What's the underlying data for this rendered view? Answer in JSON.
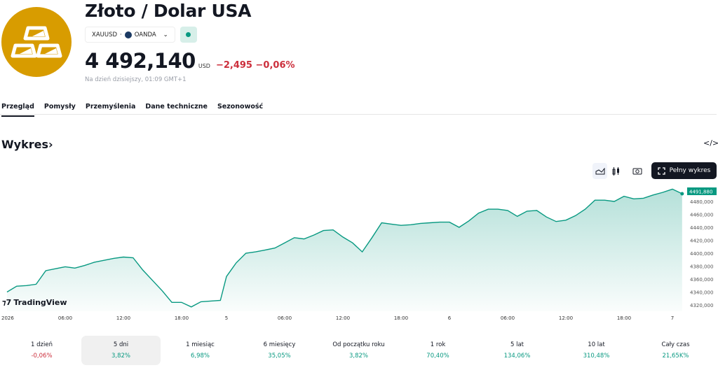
{
  "header": {
    "title": "Złoto / Dolar USA",
    "symbol": "XAUUSD",
    "exchange": "OANDA",
    "price": "4 492,140",
    "currency": "USD",
    "change": "−2,495",
    "change_pct": "−0,06%",
    "as_of": "Na dzień dzisiejszy, 01:09 GMT+1",
    "logo_color": "#D89C00"
  },
  "tabs": [
    {
      "label": "Przegląd",
      "active": true
    },
    {
      "label": "Pomysły"
    },
    {
      "label": "Przemyślenia"
    },
    {
      "label": "Dane techniczne"
    },
    {
      "label": "Sezonowość"
    }
  ],
  "chart_section": {
    "title": "Wykres",
    "chevron": "›",
    "embed_icon": "code-icon",
    "full_chart_label": "Pełny wykres",
    "branding": "TradingView"
  },
  "chart_data": {
    "type": "area",
    "color": "#089981",
    "last_value_label": "4491,880",
    "y_ticks": [
      "4480,000",
      "4460,000",
      "4440,000",
      "4420,000",
      "4400,000",
      "4380,000",
      "4360,000",
      "4340,000",
      "4320,000"
    ],
    "ylim": [
      4310,
      4505
    ],
    "x_ticks": [
      {
        "label": "2026",
        "time": "01-04 00:00"
      },
      {
        "label": "06:00",
        "time": "01-04 06:00"
      },
      {
        "label": "12:00",
        "time": "01-04 12:00"
      },
      {
        "label": "18:00",
        "time": "01-04 18:00"
      },
      {
        "label": "5",
        "time": "01-05 00:00"
      },
      {
        "label": "06:00",
        "time": "01-05 06:00"
      },
      {
        "label": "12:00",
        "time": "01-05 12:00"
      },
      {
        "label": "18:00",
        "time": "01-05 18:00"
      },
      {
        "label": "6",
        "time": "01-06 00:00"
      },
      {
        "label": "06:00",
        "time": "01-06 06:00"
      },
      {
        "label": "12:00",
        "time": "01-06 12:00"
      },
      {
        "label": "18:00",
        "time": "01-06 18:00"
      },
      {
        "label": "7",
        "time": "01-07 00:00"
      }
    ],
    "series": [
      {
        "points": [
          [
            "01-04 00:00",
            4340
          ],
          [
            "01-04 01:00",
            4349
          ],
          [
            "01-04 02:00",
            4350
          ],
          [
            "01-04 03:00",
            4352
          ],
          [
            "01-04 04:00",
            4373
          ],
          [
            "01-04 05:00",
            4376
          ],
          [
            "01-04 06:00",
            4379
          ],
          [
            "01-04 07:00",
            4377
          ],
          [
            "01-04 08:00",
            4381
          ],
          [
            "01-04 09:00",
            4386
          ],
          [
            "01-04 10:00",
            4389
          ],
          [
            "01-04 11:00",
            4392
          ],
          [
            "01-04 12:00",
            4394
          ],
          [
            "01-04 13:00",
            4393
          ],
          [
            "01-04 14:00",
            4374
          ],
          [
            "01-04 15:00",
            4358
          ],
          [
            "01-04 16:00",
            4342
          ],
          [
            "01-04 17:00",
            4324
          ],
          [
            "01-04 18:00",
            4324
          ],
          [
            "01-04 19:00",
            4317
          ],
          [
            "01-04 20:00",
            4325
          ],
          [
            "01-04 21:00",
            4326
          ],
          [
            "01-04 22:00",
            4327
          ],
          [
            "01-05 00:00",
            4364
          ],
          [
            "01-05 01:00",
            4385
          ],
          [
            "01-05 02:00",
            4400
          ],
          [
            "01-05 03:00",
            4402
          ],
          [
            "01-05 04:00",
            4405
          ],
          [
            "01-05 05:00",
            4408
          ],
          [
            "01-05 06:00",
            4416
          ],
          [
            "01-05 07:00",
            4424
          ],
          [
            "01-05 08:00",
            4422
          ],
          [
            "01-05 09:00",
            4428
          ],
          [
            "01-05 10:00",
            4435
          ],
          [
            "01-05 11:00",
            4436
          ],
          [
            "01-05 12:00",
            4425
          ],
          [
            "01-05 13:00",
            4416
          ],
          [
            "01-05 14:00",
            4402
          ],
          [
            "01-05 15:00",
            4424
          ],
          [
            "01-05 16:00",
            4447
          ],
          [
            "01-05 17:00",
            4445
          ],
          [
            "01-05 18:00",
            4443
          ],
          [
            "01-05 19:00",
            4444
          ],
          [
            "01-05 20:00",
            4446
          ],
          [
            "01-05 21:00",
            4447
          ],
          [
            "01-05 22:00",
            4448
          ],
          [
            "01-06 00:00",
            4448
          ],
          [
            "01-06 01:00",
            4440
          ],
          [
            "01-06 02:00",
            4450
          ],
          [
            "01-06 03:00",
            4462
          ],
          [
            "01-06 04:00",
            4468
          ],
          [
            "01-06 05:00",
            4468
          ],
          [
            "01-06 06:00",
            4466
          ],
          [
            "01-06 07:00",
            4457
          ],
          [
            "01-06 08:00",
            4465
          ],
          [
            "01-06 09:00",
            4466
          ],
          [
            "01-06 10:00",
            4456
          ],
          [
            "01-06 11:00",
            4449
          ],
          [
            "01-06 12:00",
            4451
          ],
          [
            "01-06 13:00",
            4458
          ],
          [
            "01-06 14:00",
            4468
          ],
          [
            "01-06 15:00",
            4482
          ],
          [
            "01-06 16:00",
            4482
          ],
          [
            "01-06 17:00",
            4480
          ],
          [
            "01-06 18:00",
            4488
          ],
          [
            "01-06 19:00",
            4484
          ],
          [
            "01-06 20:00",
            4485
          ],
          [
            "01-06 21:00",
            4490
          ],
          [
            "01-06 22:00",
            4494
          ],
          [
            "01-07 00:00",
            4499
          ],
          [
            "01-07 01:00",
            4491.88
          ]
        ]
      }
    ]
  },
  "periods": [
    {
      "label": "1 dzień",
      "value": "-0,06%",
      "dir": "neg"
    },
    {
      "label": "5 dni",
      "value": "3,82%",
      "dir": "pos",
      "selected": true
    },
    {
      "label": "1 miesiąc",
      "value": "6,98%",
      "dir": "pos"
    },
    {
      "label": "6 miesięcy",
      "value": "35,05%",
      "dir": "pos"
    },
    {
      "label": "Od początku roku",
      "value": "3,82%",
      "dir": "pos"
    },
    {
      "label": "1 rok",
      "value": "70,40%",
      "dir": "pos"
    },
    {
      "label": "5 lat",
      "value": "134,06%",
      "dir": "pos"
    },
    {
      "label": "10 lat",
      "value": "310,48%",
      "dir": "pos"
    },
    {
      "label": "Cały czas",
      "value": "21,65K%",
      "dir": "pos"
    }
  ]
}
